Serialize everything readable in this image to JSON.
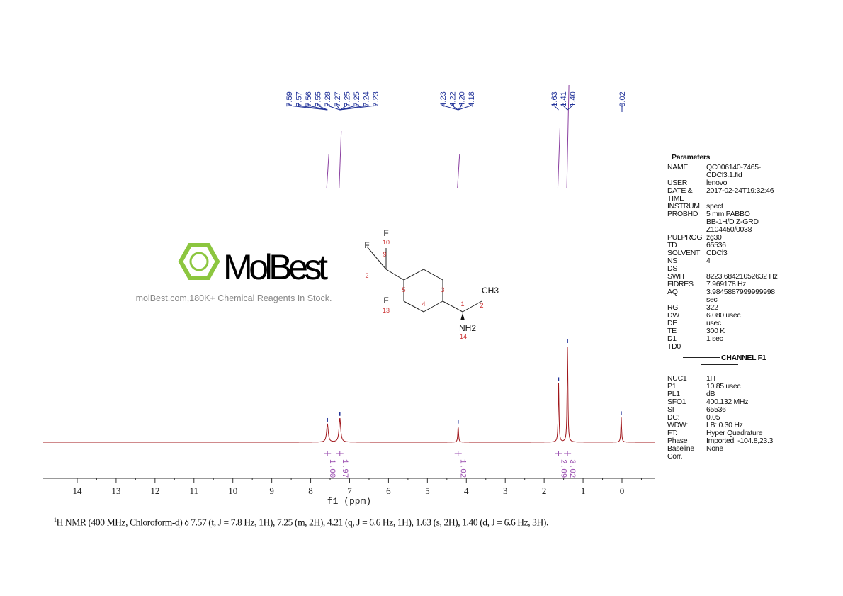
{
  "chart_data": {
    "type": "line",
    "xlabel": "f1 (ppm)",
    "xlim": [
      14.9,
      -0.85
    ],
    "x_reversed": true,
    "xticks": [
      14,
      13,
      12,
      11,
      10,
      9,
      8,
      7,
      6,
      5,
      4,
      3,
      2,
      1,
      0
    ],
    "line_color": "#a0151a",
    "peaks": [
      {
        "ppm": 7.57,
        "rel_height": 0.19
      },
      {
        "ppm": 7.25,
        "rel_height": 0.25
      },
      {
        "ppm": 4.21,
        "rel_height": 0.17
      },
      {
        "ppm": 1.63,
        "rel_height": 0.61
      },
      {
        "ppm": 1.4,
        "rel_height": 1.0
      },
      {
        "ppm": 0.02,
        "rel_height": 0.26
      }
    ],
    "peak_labels": [
      {
        "group": [
          "7.59",
          "7.57",
          "7.56",
          "7.55",
          "7.28",
          "7.27",
          "7.25",
          "7.25",
          "7.24",
          "7.23"
        ],
        "targets": [
          7.57,
          7.57,
          7.57,
          7.57,
          7.25,
          7.25,
          7.25,
          7.25,
          7.25,
          7.25
        ]
      },
      {
        "group": [
          "4.23",
          "4.22",
          "4.20",
          "4.18"
        ],
        "targets": [
          4.21,
          4.21,
          4.21,
          4.21
        ]
      },
      {
        "group": [
          "1.63",
          "1.41",
          "1.40"
        ],
        "targets": [
          1.63,
          1.4,
          1.4
        ]
      },
      {
        "group": [
          "0.02"
        ],
        "targets": [
          0.02
        ]
      }
    ],
    "integrals": [
      {
        "ppm": 7.57,
        "value": "1.00"
      },
      {
        "ppm": 7.25,
        "value": "1.97"
      },
      {
        "ppm": 4.21,
        "value": "1.02"
      },
      {
        "ppm": 1.63,
        "value": "2.09"
      },
      {
        "ppm": 1.4,
        "value": "3.02"
      }
    ]
  },
  "watermark": {
    "logo": "MolBest",
    "tagline": "molBest.com,180K+ Chemical Reagents In Stock."
  },
  "structure": {
    "labels": [
      "F",
      "10",
      "F",
      "9",
      "2",
      "5",
      "3",
      "4",
      "1",
      "CH3",
      "2",
      "F",
      "13",
      "NH2",
      "14"
    ]
  },
  "parameters": {
    "title": "Parameters",
    "rows": [
      [
        "NAME",
        "QC006140-7465-"
      ],
      [
        "",
        "CDCl3.1.fid"
      ],
      [
        "USER",
        "lenovo"
      ],
      [
        "DATE &",
        "2017-02-24T19:32:46"
      ],
      [
        "TIME",
        ""
      ],
      [
        "INSTRUM",
        "spect"
      ],
      [
        "PROBHD",
        "5 mm PABBO"
      ],
      [
        "",
        "BB-1H/D Z-GRD"
      ],
      [
        "",
        "Z104450/0038"
      ],
      [
        "PULPROG",
        "zg30"
      ],
      [
        "TD",
        "65536"
      ],
      [
        "SOLVENT",
        "CDCl3"
      ],
      [
        "NS",
        "4"
      ],
      [
        "DS",
        ""
      ],
      [
        "SWH",
        "8223.68421052632 Hz"
      ],
      [
        "FIDRES",
        "7.969178 Hz"
      ],
      [
        "AQ",
        "3.9845887999999998"
      ],
      [
        "",
        "sec"
      ],
      [
        "RG",
        "322"
      ],
      [
        "DW",
        "6.080 usec"
      ],
      [
        "DE",
        "usec"
      ],
      [
        "TE",
        "300 K"
      ],
      [
        "D1",
        "1 sec"
      ],
      [
        "TD0",
        ""
      ]
    ],
    "channel": "CHANNEL F1",
    "rows2": [
      [
        "NUC1",
        "1H"
      ],
      [
        "P1",
        "10.85 usec"
      ],
      [
        "PL1",
        "dB"
      ],
      [
        "SFO1",
        "400.132 MHz"
      ],
      [
        "SI",
        "65536"
      ],
      [
        "DC:",
        "0.05"
      ],
      [
        "WDW:",
        "LB: 0.30 Hz"
      ],
      [
        "FT:",
        "Hyper Quadrature"
      ],
      [
        "Phase",
        "Imported: -104.8,23.3"
      ],
      [
        "Baseline",
        "None"
      ],
      [
        "Corr.",
        ""
      ]
    ]
  },
  "caption": {
    "sup": "1",
    "text": "H NMR (400 MHz, Chloroform-d) δ 7.57 (t, J = 7.8 Hz, 1H), 7.25 (m, 2H), 4.21 (q, J = 6.6 Hz, 1H), 1.63 (s, 2H), 1.40 (d, J = 6.6 Hz, 3H)."
  }
}
